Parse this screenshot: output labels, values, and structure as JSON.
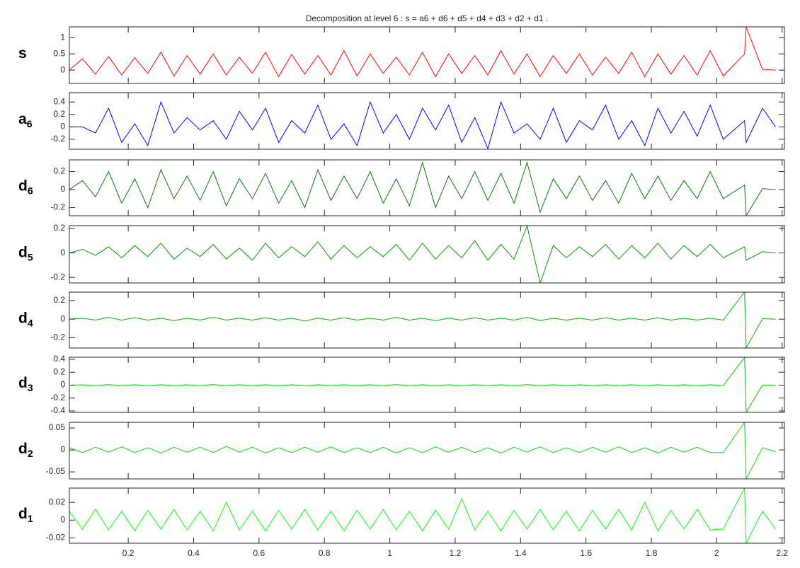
{
  "chart_data": [
    {
      "type": "line",
      "title": "Decomposition at level 6 : s = a6 + d6 + d5 + d4 + d3 + d2 + d1 .",
      "label": "s",
      "color": "#ff0000",
      "x": [
        0.02,
        0.06,
        0.1,
        0.14,
        0.18,
        0.22,
        0.26,
        0.3,
        0.34,
        0.38,
        0.42,
        0.46,
        0.5,
        0.54,
        0.58,
        0.62,
        0.66,
        0.7,
        0.74,
        0.78,
        0.82,
        0.86,
        0.9,
        0.94,
        0.98,
        1.02,
        1.06,
        1.1,
        1.14,
        1.18,
        1.22,
        1.26,
        1.3,
        1.34,
        1.38,
        1.42,
        1.46,
        1.5,
        1.54,
        1.58,
        1.62,
        1.66,
        1.7,
        1.74,
        1.78,
        1.82,
        1.86,
        1.9,
        1.94,
        1.98,
        2.02,
        2.085,
        2.09,
        2.14,
        2.18
      ],
      "values": [
        0,
        0.35,
        -0.12,
        0.42,
        -0.15,
        0.38,
        -0.1,
        0.55,
        -0.18,
        0.45,
        -0.12,
        0.5,
        -0.15,
        0.4,
        -0.1,
        0.55,
        -0.2,
        0.48,
        -0.12,
        0.45,
        -0.15,
        0.6,
        -0.18,
        0.5,
        -0.1,
        0.4,
        -0.15,
        0.55,
        -0.2,
        0.5,
        -0.1,
        0.45,
        -0.15,
        0.6,
        -0.12,
        0.5,
        -0.2,
        0.45,
        -0.1,
        0.5,
        -0.15,
        0.4,
        -0.1,
        0.55,
        -0.2,
        0.5,
        -0.12,
        0.45,
        -0.15,
        0.6,
        -0.18,
        0.5,
        1.33,
        0.02,
        0
      ],
      "xlim": [
        0.02,
        2.207
      ],
      "ylim": [
        -0.41,
        1.33
      ],
      "yticks": [
        0,
        0.5,
        1
      ],
      "xticks": [
        0.2,
        0.4,
        0.6,
        0.8,
        1,
        1.2,
        1.4,
        1.6,
        1.8,
        2,
        2.2
      ]
    },
    {
      "type": "line",
      "label": "a",
      "label_sub": "6",
      "color": "#0000ff",
      "x": [
        0.02,
        0.06,
        0.1,
        0.14,
        0.18,
        0.22,
        0.26,
        0.3,
        0.34,
        0.38,
        0.42,
        0.46,
        0.5,
        0.54,
        0.58,
        0.62,
        0.66,
        0.7,
        0.74,
        0.78,
        0.82,
        0.86,
        0.9,
        0.94,
        0.98,
        1.02,
        1.06,
        1.1,
        1.14,
        1.18,
        1.22,
        1.26,
        1.3,
        1.34,
        1.38,
        1.42,
        1.46,
        1.5,
        1.54,
        1.58,
        1.62,
        1.66,
        1.7,
        1.74,
        1.78,
        1.82,
        1.86,
        1.9,
        1.94,
        1.98,
        2.02,
        2.085,
        2.09,
        2.14,
        2.18
      ],
      "values": [
        0,
        0,
        -0.1,
        0.3,
        -0.25,
        0.05,
        -0.3,
        0.4,
        -0.1,
        0.15,
        -0.05,
        0.1,
        -0.2,
        0.25,
        -0.05,
        0.3,
        -0.25,
        0.1,
        -0.1,
        0.35,
        -0.2,
        0.05,
        -0.3,
        0.4,
        -0.1,
        0.2,
        -0.2,
        0.3,
        -0.05,
        0.35,
        -0.25,
        0.15,
        -0.35,
        0.4,
        -0.1,
        0.05,
        -0.2,
        0.3,
        -0.25,
        0.1,
        -0.05,
        0.35,
        -0.2,
        0.1,
        -0.3,
        0.3,
        -0.1,
        0.25,
        -0.15,
        0.35,
        -0.2,
        0.1,
        -0.25,
        0.3,
        0
      ],
      "xlim": [
        0.02,
        2.207
      ],
      "ylim": [
        -0.36,
        0.55
      ],
      "yticks": [
        -0.2,
        0,
        0.2,
        0.4
      ],
      "xticks": [
        0.2,
        0.4,
        0.6,
        0.8,
        1,
        1.2,
        1.4,
        1.6,
        1.8,
        2,
        2.2
      ]
    },
    {
      "type": "line",
      "label": "d",
      "label_sub": "6",
      "color": "#007a00",
      "x": [
        0.02,
        0.06,
        0.1,
        0.14,
        0.18,
        0.22,
        0.26,
        0.3,
        0.34,
        0.38,
        0.42,
        0.46,
        0.5,
        0.54,
        0.58,
        0.62,
        0.66,
        0.7,
        0.74,
        0.78,
        0.82,
        0.86,
        0.9,
        0.94,
        0.98,
        1.02,
        1.06,
        1.1,
        1.14,
        1.18,
        1.22,
        1.26,
        1.3,
        1.34,
        1.38,
        1.42,
        1.46,
        1.5,
        1.54,
        1.58,
        1.62,
        1.66,
        1.7,
        1.74,
        1.78,
        1.82,
        1.86,
        1.9,
        1.94,
        1.98,
        2.02,
        2.085,
        2.09,
        2.14,
        2.18
      ],
      "values": [
        0,
        0.1,
        -0.08,
        0.2,
        -0.15,
        0.12,
        -0.2,
        0.22,
        -0.1,
        0.15,
        -0.12,
        0.2,
        -0.18,
        0.12,
        -0.1,
        0.18,
        -0.15,
        0.1,
        -0.2,
        0.22,
        -0.12,
        0.15,
        -0.1,
        0.2,
        -0.15,
        0.12,
        -0.18,
        0.3,
        -0.2,
        0.15,
        -0.1,
        0.2,
        -0.12,
        0.18,
        -0.15,
        0.3,
        -0.25,
        0.12,
        -0.1,
        0.15,
        -0.12,
        0.1,
        -0.15,
        0.18,
        -0.1,
        0.15,
        -0.12,
        0.1,
        -0.1,
        0.2,
        -0.1,
        0.05,
        -0.29,
        0.01,
        0
      ],
      "xlim": [
        0.02,
        2.207
      ],
      "ylim": [
        -0.29,
        0.33
      ],
      "yticks": [
        -0.2,
        0,
        0.2
      ],
      "xticks": [
        0.2,
        0.4,
        0.6,
        0.8,
        1,
        1.2,
        1.4,
        1.6,
        1.8,
        2,
        2.2
      ]
    },
    {
      "type": "line",
      "label": "d",
      "label_sub": "5",
      "color": "#009a00",
      "x": [
        0.02,
        0.06,
        0.1,
        0.14,
        0.18,
        0.22,
        0.26,
        0.3,
        0.34,
        0.38,
        0.42,
        0.46,
        0.5,
        0.54,
        0.58,
        0.62,
        0.66,
        0.7,
        0.74,
        0.78,
        0.82,
        0.86,
        0.9,
        0.94,
        0.98,
        1.02,
        1.06,
        1.1,
        1.14,
        1.18,
        1.22,
        1.26,
        1.3,
        1.34,
        1.38,
        1.42,
        1.46,
        1.5,
        1.54,
        1.58,
        1.62,
        1.66,
        1.7,
        1.74,
        1.78,
        1.82,
        1.86,
        1.9,
        1.94,
        1.98,
        2.02,
        2.085,
        2.09,
        2.14,
        2.18
      ],
      "values": [
        0,
        0.03,
        -0.02,
        0.05,
        -0.04,
        0.06,
        -0.03,
        0.08,
        -0.05,
        0.04,
        -0.03,
        0.07,
        -0.05,
        0.04,
        -0.06,
        0.08,
        -0.04,
        0.05,
        -0.03,
        0.09,
        -0.05,
        0.06,
        -0.04,
        0.05,
        -0.03,
        0.07,
        -0.06,
        0.08,
        -0.05,
        0.06,
        -0.04,
        0.1,
        -0.06,
        0.07,
        -0.05,
        0.22,
        -0.245,
        0.06,
        -0.04,
        0.05,
        -0.03,
        0.07,
        -0.05,
        0.06,
        -0.04,
        0.08,
        -0.05,
        0.06,
        -0.03,
        0.07,
        -0.04,
        0.05,
        -0.06,
        0.01,
        0
      ],
      "xlim": [
        0.02,
        2.207
      ],
      "ylim": [
        -0.245,
        0.223
      ],
      "yticks": [
        -0.2,
        0,
        0.2
      ],
      "xticks": [
        0.2,
        0.4,
        0.6,
        0.8,
        1,
        1.2,
        1.4,
        1.6,
        1.8,
        2,
        2.2
      ]
    },
    {
      "type": "line",
      "label": "d",
      "label_sub": "4",
      "color": "#00b400",
      "x": [
        0.02,
        0.06,
        0.1,
        0.14,
        0.18,
        0.22,
        0.26,
        0.3,
        0.34,
        0.38,
        0.42,
        0.46,
        0.5,
        0.54,
        0.58,
        0.62,
        0.66,
        0.7,
        0.74,
        0.78,
        0.82,
        0.86,
        0.9,
        0.94,
        0.98,
        1.02,
        1.06,
        1.1,
        1.14,
        1.18,
        1.22,
        1.26,
        1.3,
        1.34,
        1.38,
        1.42,
        1.46,
        1.5,
        1.54,
        1.58,
        1.62,
        1.66,
        1.7,
        1.74,
        1.78,
        1.82,
        1.86,
        1.9,
        1.94,
        1.98,
        2.02,
        2.085,
        2.09,
        2.14,
        2.18
      ],
      "values": [
        0,
        0.01,
        -0.01,
        0.02,
        -0.01,
        0.015,
        -0.01,
        0.01,
        -0.015,
        0.01,
        -0.01,
        0.02,
        -0.01,
        0.01,
        -0.01,
        0.015,
        -0.01,
        0.01,
        -0.02,
        0.01,
        -0.01,
        0.015,
        -0.01,
        0.01,
        -0.01,
        0.02,
        -0.01,
        0.01,
        -0.015,
        0.01,
        -0.01,
        0.015,
        -0.01,
        0.01,
        -0.01,
        0.02,
        -0.015,
        0.01,
        -0.01,
        0.01,
        -0.01,
        0.015,
        -0.01,
        0.01,
        -0.01,
        0.015,
        -0.01,
        0.01,
        -0.01,
        0.01,
        -0.01,
        0.29,
        -0.31,
        0.005,
        0
      ],
      "xlim": [
        0.02,
        2.207
      ],
      "ylim": [
        -0.31,
        0.29
      ],
      "yticks": [
        -0.2,
        0,
        0.2
      ],
      "xticks": [
        0.2,
        0.4,
        0.6,
        0.8,
        1,
        1.2,
        1.4,
        1.6,
        1.8,
        2,
        2.2
      ]
    },
    {
      "type": "line",
      "label": "d",
      "label_sub": "3",
      "color": "#00c800",
      "x": [
        0.02,
        0.06,
        0.1,
        0.14,
        0.18,
        0.22,
        0.26,
        0.3,
        0.34,
        0.38,
        0.42,
        0.46,
        0.5,
        0.54,
        0.58,
        0.62,
        0.66,
        0.7,
        0.74,
        0.78,
        0.82,
        0.86,
        0.9,
        0.94,
        0.98,
        1.02,
        1.06,
        1.1,
        1.14,
        1.18,
        1.22,
        1.26,
        1.3,
        1.34,
        1.38,
        1.42,
        1.46,
        1.5,
        1.54,
        1.58,
        1.62,
        1.66,
        1.7,
        1.74,
        1.78,
        1.82,
        1.86,
        1.9,
        1.94,
        1.98,
        2.02,
        2.085,
        2.09,
        2.14,
        2.18
      ],
      "values": [
        0,
        0.005,
        -0.005,
        0.008,
        -0.005,
        0.006,
        -0.005,
        0.005,
        -0.006,
        0.005,
        -0.005,
        0.008,
        -0.005,
        0.005,
        -0.005,
        0.006,
        -0.005,
        0.005,
        -0.008,
        0.005,
        -0.005,
        0.006,
        -0.005,
        0.005,
        -0.005,
        0.008,
        -0.005,
        0.005,
        -0.006,
        0.005,
        -0.005,
        0.006,
        -0.005,
        0.005,
        -0.005,
        0.008,
        -0.006,
        0.005,
        -0.005,
        0.005,
        -0.005,
        0.006,
        -0.005,
        0.005,
        -0.005,
        0.006,
        -0.005,
        0.005,
        -0.005,
        0.005,
        -0.005,
        0.43,
        -0.42,
        0.003,
        0
      ],
      "xlim": [
        0.02,
        2.207
      ],
      "ylim": [
        -0.422,
        0.433
      ],
      "yticks": [
        -0.4,
        -0.2,
        0,
        0.2,
        0.4
      ],
      "xticks": [
        0.2,
        0.4,
        0.6,
        0.8,
        1,
        1.2,
        1.4,
        1.6,
        1.8,
        2,
        2.2
      ]
    },
    {
      "type": "line",
      "label": "d",
      "label_sub": "2",
      "color": "#00e000",
      "x": [
        0.02,
        0.06,
        0.1,
        0.14,
        0.18,
        0.22,
        0.26,
        0.3,
        0.34,
        0.38,
        0.42,
        0.46,
        0.5,
        0.54,
        0.58,
        0.62,
        0.66,
        0.7,
        0.74,
        0.78,
        0.82,
        0.86,
        0.9,
        0.94,
        0.98,
        1.02,
        1.06,
        1.1,
        1.14,
        1.18,
        1.22,
        1.26,
        1.3,
        1.34,
        1.38,
        1.42,
        1.46,
        1.5,
        1.54,
        1.58,
        1.62,
        1.66,
        1.7,
        1.74,
        1.78,
        1.82,
        1.86,
        1.9,
        1.94,
        1.98,
        2.02,
        2.085,
        2.09,
        2.14,
        2.18
      ],
      "values": [
        0.005,
        -0.006,
        0.006,
        -0.005,
        0.007,
        -0.006,
        0.005,
        -0.007,
        0.006,
        -0.005,
        0.006,
        -0.006,
        0.008,
        -0.005,
        0.006,
        -0.007,
        0.005,
        -0.006,
        0.006,
        -0.005,
        0.007,
        -0.006,
        0.005,
        -0.006,
        0.006,
        -0.007,
        0.005,
        -0.006,
        0.007,
        -0.005,
        0.006,
        -0.006,
        0.005,
        -0.007,
        0.006,
        -0.005,
        0.007,
        -0.006,
        0.005,
        -0.006,
        0.006,
        -0.005,
        0.007,
        -0.006,
        0.005,
        -0.007,
        0.006,
        -0.005,
        0.006,
        -0.006,
        -0.006,
        0.063,
        -0.066,
        0.005,
        -0.004
      ],
      "xlim": [
        0.02,
        2.207
      ],
      "ylim": [
        -0.066,
        0.063
      ],
      "yticks": [
        -0.05,
        0,
        0.05
      ],
      "xticks": [
        0.2,
        0.4,
        0.6,
        0.8,
        1,
        1.2,
        1.4,
        1.6,
        1.8,
        2,
        2.2
      ]
    },
    {
      "type": "line",
      "label": "d",
      "label_sub": "1",
      "color": "#00ff00",
      "x": [
        0.02,
        0.06,
        0.1,
        0.14,
        0.18,
        0.22,
        0.26,
        0.3,
        0.34,
        0.38,
        0.42,
        0.46,
        0.5,
        0.54,
        0.58,
        0.62,
        0.66,
        0.7,
        0.74,
        0.78,
        0.82,
        0.86,
        0.9,
        0.94,
        0.98,
        1.02,
        1.06,
        1.1,
        1.14,
        1.18,
        1.22,
        1.26,
        1.3,
        1.34,
        1.38,
        1.42,
        1.46,
        1.5,
        1.54,
        1.58,
        1.62,
        1.66,
        1.7,
        1.74,
        1.78,
        1.82,
        1.86,
        1.9,
        1.94,
        1.98,
        2.02,
        2.085,
        2.09,
        2.14,
        2.18
      ],
      "values": [
        0.01,
        -0.01,
        0.012,
        -0.011,
        0.01,
        -0.012,
        0.011,
        -0.01,
        0.012,
        -0.011,
        0.01,
        -0.012,
        0.02,
        -0.011,
        0.01,
        -0.012,
        0.011,
        -0.01,
        0.012,
        -0.011,
        0.01,
        -0.012,
        0.011,
        -0.01,
        0.012,
        -0.011,
        0.01,
        -0.012,
        0.011,
        -0.01,
        0.024,
        -0.011,
        0.01,
        -0.012,
        0.011,
        -0.01,
        0.012,
        -0.011,
        0.01,
        -0.012,
        0.011,
        -0.01,
        0.012,
        -0.011,
        0.02,
        -0.012,
        0.011,
        -0.01,
        0.012,
        -0.011,
        -0.01,
        0.036,
        -0.026,
        0.01,
        -0.01
      ],
      "xlim": [
        0.02,
        2.207
      ],
      "ylim": [
        -0.026,
        0.036
      ],
      "yticks": [
        -0.02,
        0,
        0.02
      ],
      "xticks": [
        0.2,
        0.4,
        0.6,
        0.8,
        1,
        1.2,
        1.4,
        1.6,
        1.8,
        2,
        2.2
      ]
    }
  ]
}
